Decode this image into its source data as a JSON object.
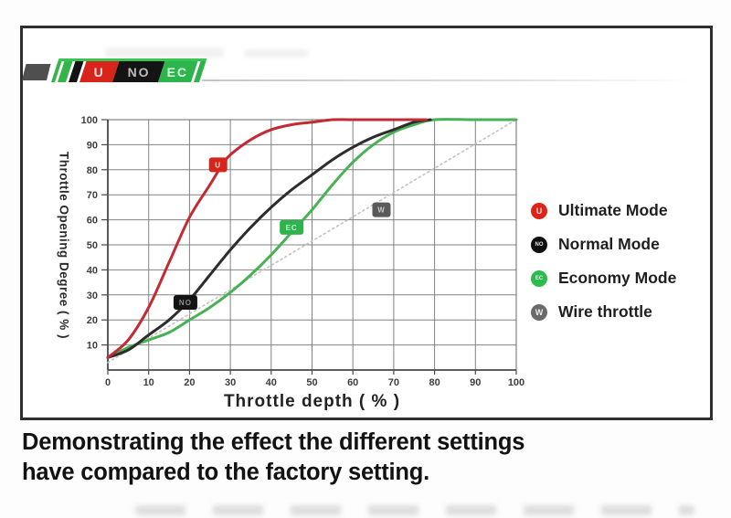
{
  "logo": {
    "stripe_colors": [
      "#35b44a",
      "#35b44a",
      "#131313"
    ],
    "segments": [
      {
        "label": "U",
        "bg": "#d8251c",
        "fg": "#ffe2df"
      },
      {
        "label": "NO",
        "bg": "#141414",
        "fg": "#bdbdbd"
      },
      {
        "label": "EC",
        "bg": "#2eb44d",
        "fg": "#d9ffe3"
      }
    ]
  },
  "chart_data": {
    "type": "line",
    "title": "",
    "xlabel": "Throttle depth ( % )",
    "ylabel": "Throttle Opening Degree ( % )",
    "xlim": [
      0,
      100
    ],
    "ylim": [
      0,
      100
    ],
    "x_ticks": [
      0,
      10,
      20,
      30,
      40,
      50,
      60,
      70,
      80,
      90,
      100
    ],
    "y_ticks": [
      10,
      20,
      30,
      40,
      50,
      60,
      70,
      80,
      90,
      100
    ],
    "grid": true,
    "legend_position": "right",
    "series": [
      {
        "name": "Ultimate Mode",
        "color": "#c22b33",
        "style": "solid",
        "points": [
          [
            0,
            5
          ],
          [
            5,
            12
          ],
          [
            10,
            25
          ],
          [
            15,
            43
          ],
          [
            20,
            61
          ],
          [
            25,
            74
          ],
          [
            28,
            82
          ],
          [
            30,
            86
          ],
          [
            35,
            92
          ],
          [
            40,
            96
          ],
          [
            45,
            98
          ],
          [
            50,
            99
          ],
          [
            55,
            100
          ],
          [
            60,
            100
          ],
          [
            70,
            100
          ],
          [
            78,
            100
          ]
        ]
      },
      {
        "name": "Normal Mode",
        "color": "#2d2d2d",
        "style": "solid",
        "points": [
          [
            0,
            5
          ],
          [
            5,
            8
          ],
          [
            10,
            14
          ],
          [
            15,
            20
          ],
          [
            20,
            28
          ],
          [
            25,
            38
          ],
          [
            30,
            48
          ],
          [
            35,
            57
          ],
          [
            40,
            65
          ],
          [
            45,
            72
          ],
          [
            50,
            78
          ],
          [
            55,
            84
          ],
          [
            60,
            89
          ],
          [
            65,
            93
          ],
          [
            70,
            96
          ],
          [
            75,
            99
          ],
          [
            79,
            100
          ]
        ]
      },
      {
        "name": "Economy Mode",
        "color": "#46b254",
        "style": "solid",
        "points": [
          [
            0,
            5
          ],
          [
            5,
            9
          ],
          [
            10,
            12
          ],
          [
            15,
            15
          ],
          [
            20,
            20
          ],
          [
            25,
            25
          ],
          [
            30,
            31
          ],
          [
            35,
            38
          ],
          [
            40,
            46
          ],
          [
            45,
            55
          ],
          [
            50,
            64
          ],
          [
            55,
            74
          ],
          [
            60,
            83
          ],
          [
            65,
            90
          ],
          [
            70,
            95
          ],
          [
            75,
            98
          ],
          [
            80,
            100
          ],
          [
            90,
            100
          ],
          [
            100,
            100
          ]
        ]
      },
      {
        "name": "Wire throttle",
        "color": "#c2c2c2",
        "style": "dotted",
        "points": [
          [
            0,
            3
          ],
          [
            100,
            100
          ]
        ]
      }
    ],
    "curve_badges": [
      {
        "label": "U",
        "x": 27,
        "y": 82,
        "bg": "#d8251c",
        "fg": "#ffd9d6"
      },
      {
        "label": "NO",
        "x": 19,
        "y": 27,
        "bg": "#141414",
        "fg": "#8f8f8f"
      },
      {
        "label": "EC",
        "x": 45,
        "y": 57,
        "bg": "#2eb44d",
        "fg": "#c4f3cd"
      },
      {
        "label": "W",
        "x": 67,
        "y": 64,
        "bg": "#5a5a5a",
        "fg": "#c8c8c8"
      }
    ]
  },
  "legend": {
    "items": [
      {
        "letter": "U",
        "color": "#e02318",
        "label": "Ultimate Mode"
      },
      {
        "letter": "NO",
        "color": "#101010",
        "label": "Normal Mode"
      },
      {
        "letter": "EC",
        "color": "#2cbb4e",
        "label": "Economy Mode"
      },
      {
        "letter": "W",
        "color": "#6a6a6a",
        "label": "Wire throttle"
      }
    ]
  },
  "caption": {
    "line1": "Demonstrating the effect the different settings",
    "line2": "have compared to the factory setting."
  },
  "colors": {
    "grid": "#828282",
    "axis": "#4a4a4a",
    "tick_text": "#3d3d3d",
    "frame_border": "#2e2e2e"
  }
}
